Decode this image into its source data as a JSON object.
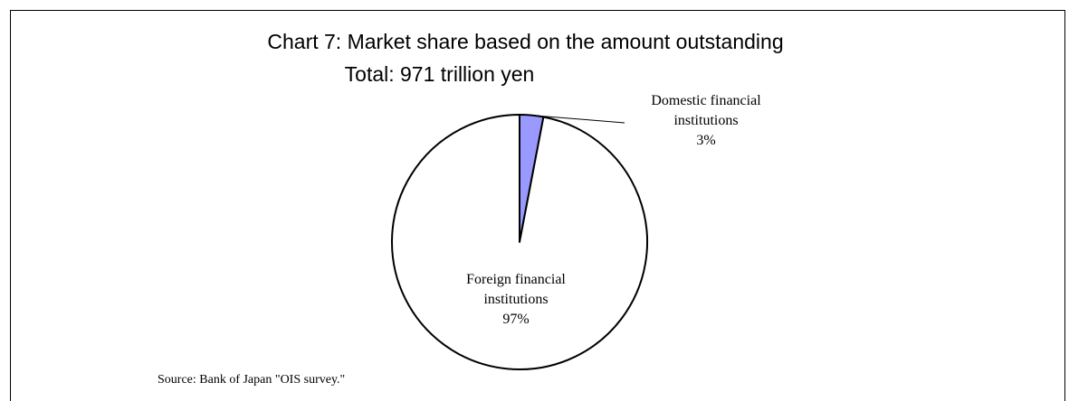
{
  "chart_data": {
    "type": "pie",
    "title": "Chart 7: Market share based on the amount outstanding",
    "subtitle": "Total: 971 trillion yen",
    "slices": [
      {
        "label_lines": [
          "Domestic financial",
          "institutions",
          "3%"
        ],
        "value": 3,
        "color": "#9999ff"
      },
      {
        "label_lines": [
          "Foreign financial",
          "institutions",
          "97%"
        ],
        "value": 97,
        "color": "#ffffff"
      }
    ],
    "source": "Source: Bank of Japan \"OIS survey.\""
  }
}
